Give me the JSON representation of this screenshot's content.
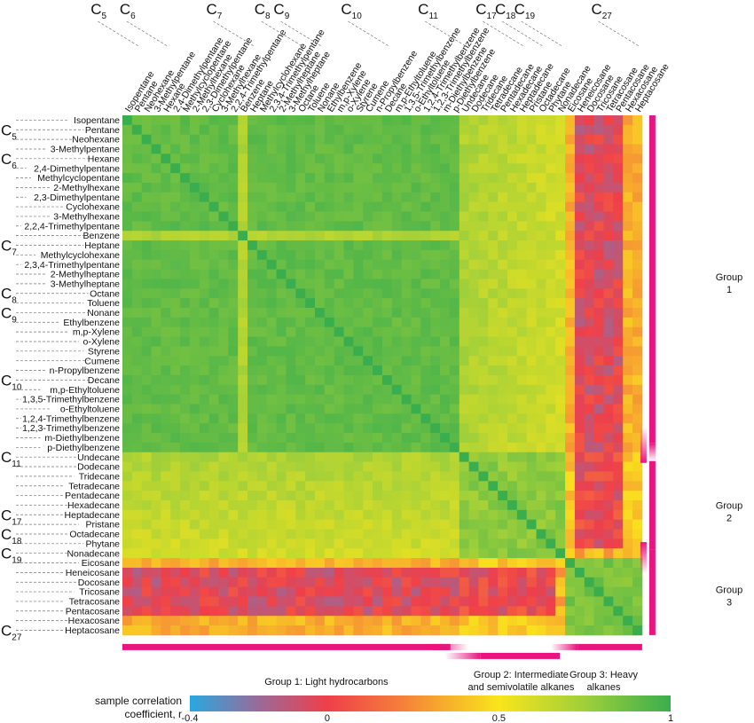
{
  "chart_data": {
    "type": "heatmap",
    "compounds": [
      "Isopentane",
      "Pentane",
      "Neohexane",
      "3-Methylpentane",
      "Hexane",
      "2,4-Dimethylpentane",
      "Methylcyclopentane",
      "2-Methylhexane",
      "2,3-Dimethylpentane",
      "Cyclohexane",
      "3-Methylhexane",
      "2,2,4-Trimethylpentane",
      "Benzene",
      "Heptane",
      "Methylcyclohexane",
      "2,3,4-Trimethylpentane",
      "2-Methylheptane",
      "3-Methylheptane",
      "Octane",
      "Toluene",
      "Nonane",
      "Ethylbenzene",
      "m,p-Xylene",
      "o-Xylene",
      "Styrene",
      "Cumene",
      "n-Propylbenzene",
      "Decane",
      "m,p-Ethyltoluene",
      "1,3,5-Trimethylbenzene",
      "o-Ethyltoluene",
      "1,2,4-Trimethylbenzene",
      "1,2,3-Trimethylbenzene",
      "m-Diethylbenzene",
      "p-Diethylbenzene",
      "Undecane",
      "Dodecane",
      "Tridecane",
      "Tetradecane",
      "Pentadecane",
      "Hexadecane",
      "Heptadecane",
      "Pristane",
      "Octadecane",
      "Phytane",
      "Nonadecane",
      "Eicosane",
      "Heneicosane",
      "Docosane",
      "Tricosane",
      "Tetracosane",
      "Pentacosane",
      "Hexacosane",
      "Heptacosane"
    ],
    "group_sizes": [
      35,
      11,
      8
    ],
    "carbon_markers": [
      {
        "base": "C",
        "sub": "5",
        "index": 1
      },
      {
        "base": "C",
        "sub": "6",
        "index": 4
      },
      {
        "base": "C",
        "sub": "7",
        "index": 13
      },
      {
        "base": "C",
        "sub": "8",
        "index": 18
      },
      {
        "base": "C",
        "sub": "9",
        "index": 20
      },
      {
        "base": "C",
        "sub": "10",
        "index": 27
      },
      {
        "base": "C",
        "sub": "11",
        "index": 35
      },
      {
        "base": "C",
        "sub": "17",
        "index": 41
      },
      {
        "base": "C",
        "sub": "18",
        "index": 43
      },
      {
        "base": "C",
        "sub": "19",
        "index": 45
      },
      {
        "base": "C",
        "sub": "27",
        "index": 53
      }
    ],
    "colorbar": {
      "title_line1": "sample correlation",
      "title_line2": "coefficient, r",
      "min": -0.4,
      "max": 1,
      "ticks": [
        {
          "value": -0.4,
          "label": "-0.4"
        },
        {
          "value": 0,
          "label": "0"
        },
        {
          "value": 0.5,
          "label": "0.5"
        },
        {
          "value": 1,
          "label": "1"
        }
      ],
      "stops": [
        {
          "value": -0.4,
          "color": "#29a8e0"
        },
        {
          "value": -0.2,
          "color": "#9a6a9a"
        },
        {
          "value": 0.0,
          "color": "#ef3f4a"
        },
        {
          "value": 0.2,
          "color": "#f57a3c"
        },
        {
          "value": 0.5,
          "color": "#f9e51c"
        },
        {
          "value": 0.75,
          "color": "#9fcf3a"
        },
        {
          "value": 1.0,
          "color": "#3aae4e"
        }
      ]
    },
    "groups": {
      "bar_color": "#e8157f",
      "right_labels": [
        {
          "line1": "Group",
          "line2": "1"
        },
        {
          "line1": "Group",
          "line2": "2"
        },
        {
          "line1": "Group",
          "line2": "3"
        }
      ],
      "bottom_labels": [
        {
          "line1": "Group 1: Light hydrocarbons",
          "line2": ""
        },
        {
          "line1": "Group 2: Intermediate",
          "line2": "and semivolatile alkanes"
        },
        {
          "line1": "Group 3: Heavy",
          "line2": "alkanes"
        }
      ]
    }
  }
}
